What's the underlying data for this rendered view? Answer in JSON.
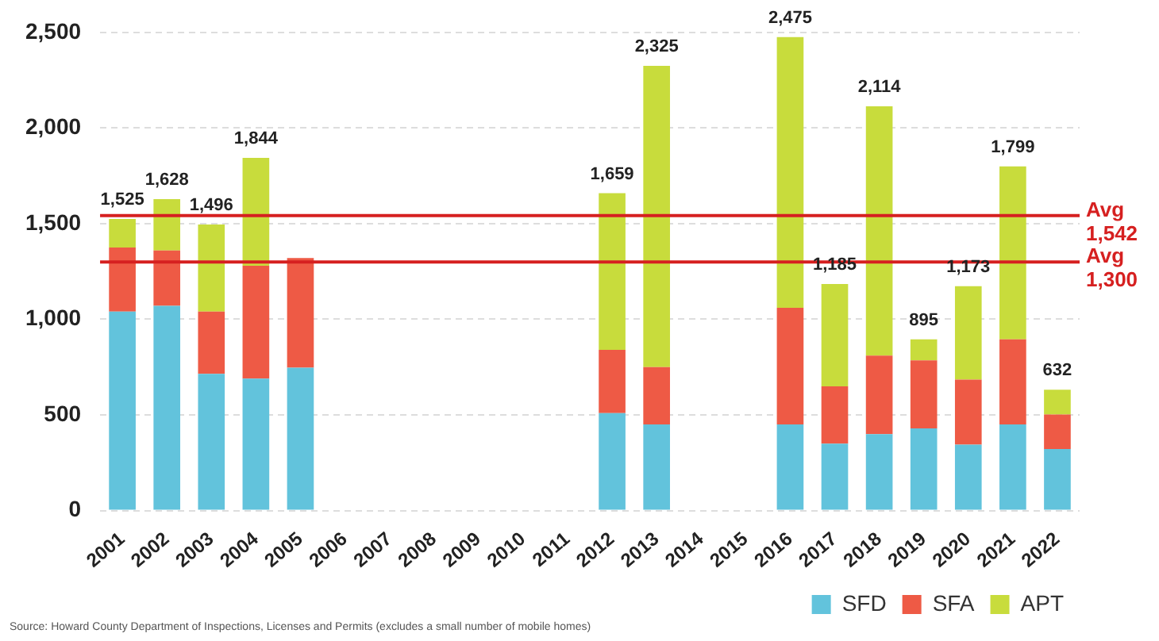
{
  "chart_data": {
    "type": "bar",
    "stacked": true,
    "categories": [
      "2001",
      "2002",
      "2003",
      "2004",
      "2005",
      "2006",
      "2007",
      "2008",
      "2009",
      "2010",
      "2011",
      "2012",
      "2013",
      "2014",
      "2015",
      "2016",
      "2017",
      "2018",
      "2019",
      "2020",
      "2021",
      "2022"
    ],
    "series": [
      {
        "name": "SFD",
        "color": "#62c3dc",
        "values": [
          1040,
          1070,
          715,
          690,
          747,
          null,
          null,
          null,
          null,
          null,
          null,
          510,
          450,
          null,
          null,
          450,
          350,
          400,
          430,
          345,
          450,
          322
        ]
      },
      {
        "name": "SFA",
        "color": "#ee5a45",
        "values": [
          335,
          290,
          325,
          590,
          573,
          null,
          null,
          null,
          null,
          null,
          null,
          330,
          300,
          null,
          null,
          610,
          300,
          410,
          355,
          340,
          445,
          180
        ]
      },
      {
        "name": "APT",
        "color": "#c8dc3c",
        "values": [
          150,
          268,
          456,
          564,
          null,
          null,
          null,
          null,
          null,
          null,
          null,
          819,
          1575,
          null,
          null,
          1415,
          535,
          1304,
          110,
          488,
          904,
          130
        ]
      }
    ],
    "totals": [
      "1,525",
      "1,628",
      "1,496",
      "1,844",
      null,
      null,
      null,
      null,
      null,
      null,
      null,
      "1,659",
      "2,325",
      null,
      null,
      "2,475",
      "1,185",
      "2,114",
      "895",
      "1,173",
      "1,799",
      "632"
    ],
    "ylim": [
      0,
      2500
    ],
    "yticks": [
      0,
      {
        "value": 500,
        "label": "500"
      },
      {
        "value": 1000,
        "label": "1,000"
      },
      {
        "value": 1500,
        "label": "1,500"
      },
      {
        "value": 2000,
        "label": "2,000"
      },
      {
        "value": 2500,
        "label": "2,500"
      }
    ],
    "grid": "y",
    "legend": "bottom right",
    "ref_lines": [
      {
        "axis": "y",
        "value": 1542,
        "label": "Avg 1,542",
        "color": "#d62020"
      },
      {
        "axis": "y",
        "value": 1300,
        "label": "Avg 1,300",
        "color": "#d62020"
      }
    ],
    "annotations": [
      "Source: Howard County Department of Inspections, Licenses and Permits (excludes a small number of mobile homes)"
    ]
  }
}
